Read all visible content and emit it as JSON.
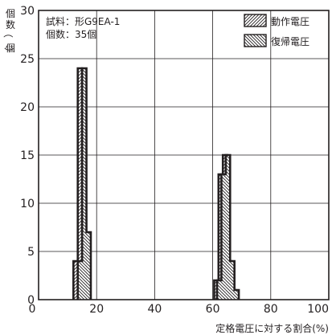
{
  "chart_data": {
    "type": "bar",
    "title": "",
    "xlabel": "定格電圧に対する割合(%)",
    "ylabel": "個数（個）",
    "xlim": [
      0,
      100
    ],
    "ylim": [
      0,
      30
    ],
    "x_ticks": [
      0,
      20,
      40,
      60,
      80,
      100
    ],
    "y_ticks": [
      0,
      5,
      10,
      15,
      20,
      25,
      30
    ],
    "grid": true,
    "legend_position": "top-right",
    "bin_width": 1.5,
    "annotation": [
      "試料：形G9EA-1",
      "個数：35個"
    ],
    "series": [
      {
        "name": "動作電圧",
        "hatch": "forward-diagonal",
        "bins": [
          {
            "x": [
              12,
              13.5
            ],
            "count": 4
          },
          {
            "x": [
              13.5,
              15
            ],
            "count": 24
          },
          {
            "x": [
              15,
              16.5
            ],
            "count": 7
          },
          {
            "x": [
              60.5,
              62
            ],
            "count": 2
          },
          {
            "x": [
              62,
              63.5
            ],
            "count": 13
          },
          {
            "x": [
              63.5,
              65
            ],
            "count": 15
          },
          {
            "x": [
              65,
              66.5
            ],
            "count": 4
          },
          {
            "x": [
              66.5,
              68
            ],
            "count": 1
          }
        ]
      },
      {
        "name": "復帰電圧",
        "hatch": "back-diagonal",
        "bins": [
          {
            "x": [
              13.5,
              15
            ],
            "count": 4
          },
          {
            "x": [
              15,
              16.5
            ],
            "count": 24
          },
          {
            "x": [
              16.5,
              18
            ],
            "count": 7
          },
          {
            "x": [
              61.5,
              63
            ],
            "count": 2
          },
          {
            "x": [
              63,
              64.5
            ],
            "count": 13
          },
          {
            "x": [
              64.5,
              66
            ],
            "count": 15
          },
          {
            "x": [
              66,
              67.5
            ],
            "count": 4
          },
          {
            "x": [
              67.5,
              69
            ],
            "count": 1
          }
        ]
      }
    ]
  },
  "axis": {
    "y_label_chars": [
      "個",
      "数",
      "（",
      "個"
    ],
    "y_label_close": "）"
  }
}
